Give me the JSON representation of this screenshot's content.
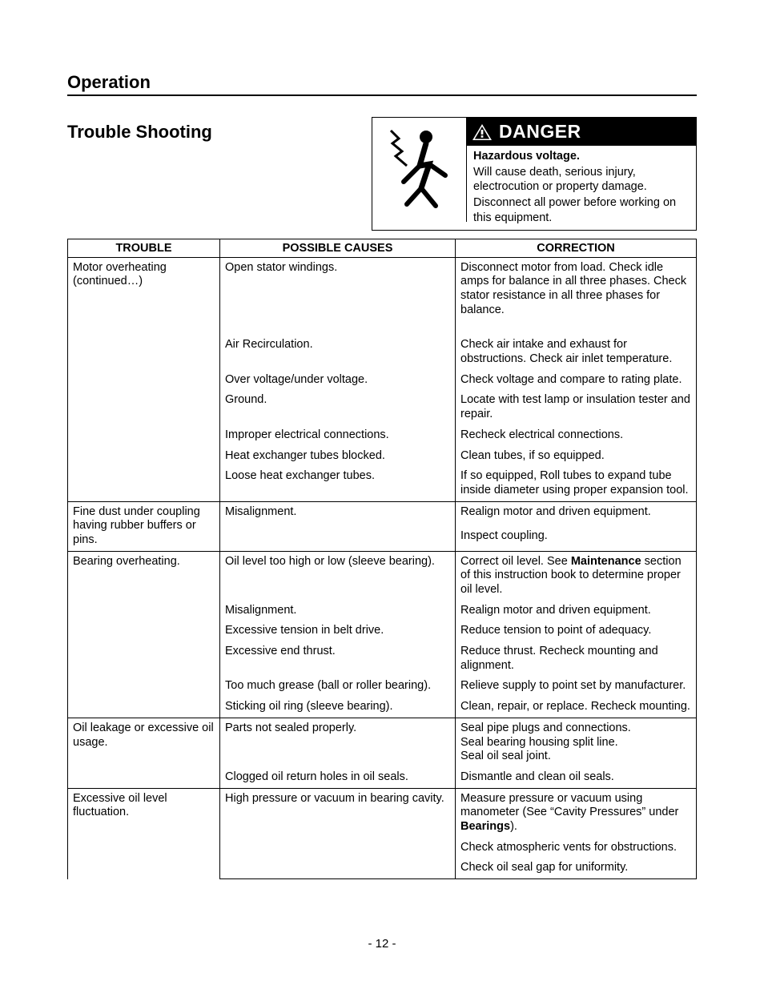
{
  "section_title": "Operation",
  "subsection_title": "Trouble Shooting",
  "danger": {
    "label": "DANGER",
    "heading": "Hazardous voltage.",
    "line1": "Will cause death, serious injury, electrocution or property damage.",
    "line2": "Disconnect all power before working on this equipment."
  },
  "table": {
    "headers": {
      "trouble": "TROUBLE",
      "causes": "POSSIBLE CAUSES",
      "correction": "CORRECTION"
    },
    "groups": [
      {
        "trouble": "Motor overheating (continued…)",
        "rows": [
          {
            "cause": "Open stator windings.",
            "correction": "Disconnect motor from load.  Check idle amps for balance in all three phases.  Check stator resistance in all three phases for balance.",
            "spacer_after": true
          },
          {
            "cause": "Air Recirculation.",
            "correction": "Check air intake and exhaust for obstructions.  Check air inlet temperature."
          },
          {
            "cause": "Over voltage/under voltage.",
            "correction": "Check voltage and compare to rating plate."
          },
          {
            "cause": "Ground.",
            "correction": "Locate with test lamp or insulation tester and repair."
          },
          {
            "cause": "Improper electrical connections.",
            "correction": "Recheck electrical connections."
          },
          {
            "cause": "Heat exchanger tubes blocked.",
            "correction": "Clean tubes, if so equipped."
          },
          {
            "cause": "Loose heat exchanger tubes.",
            "correction": "If so equipped, Roll tubes to expand tube inside diameter using proper expansion tool."
          }
        ]
      },
      {
        "trouble": "Fine dust under coupling having rubber buffers or pins.",
        "rows": [
          {
            "cause": "Misalignment.",
            "correction": "Realign motor and driven equipment."
          },
          {
            "cause": "",
            "correction": "Inspect coupling.",
            "spacer_after": true
          }
        ]
      },
      {
        "trouble": "Bearing overheating.",
        "rows": [
          {
            "cause": "Oil level too high or low (sleeve bearing).",
            "correction_html": "Correct oil level.  See <b>Maintenance</b> section of this instruction book to determine proper oil level."
          },
          {
            "cause": "Misalignment.",
            "correction": "Realign motor and driven equipment."
          },
          {
            "cause": "Excessive tension in belt drive.",
            "correction": "Reduce tension to point of adequacy."
          },
          {
            "cause": "Excessive end thrust.",
            "correction": "Reduce thrust.  Recheck mounting and alignment."
          },
          {
            "cause": "Too much grease (ball or roller bearing).",
            "correction": "Relieve supply to point set by manufacturer."
          },
          {
            "cause": "Sticking oil ring (sleeve bearing).",
            "correction": "Clean, repair, or replace.  Recheck mounting."
          }
        ]
      },
      {
        "trouble": "Oil leakage or excessive oil usage.",
        "rows": [
          {
            "cause": "Parts not sealed properly.",
            "correction_html": "Seal pipe plugs and connections.<br>Seal bearing housing split line.<br>Seal oil seal joint."
          },
          {
            "cause": "Clogged oil return holes in oil seals.",
            "correction": "Dismantle and clean oil seals."
          }
        ]
      },
      {
        "trouble": "Excessive oil level fluctuation.",
        "rows": [
          {
            "cause": "High pressure or vacuum in bearing cavity.",
            "correction_html": "Measure pressure or vacuum using manometer (See “Cavity Pressures” under <b>Bearings</b>)."
          },
          {
            "cause": "",
            "correction": "Check atmospheric vents for obstructions."
          },
          {
            "cause": "",
            "correction": "Check oil seal gap for uniformity."
          }
        ]
      }
    ]
  },
  "page_number": "- 12 -"
}
